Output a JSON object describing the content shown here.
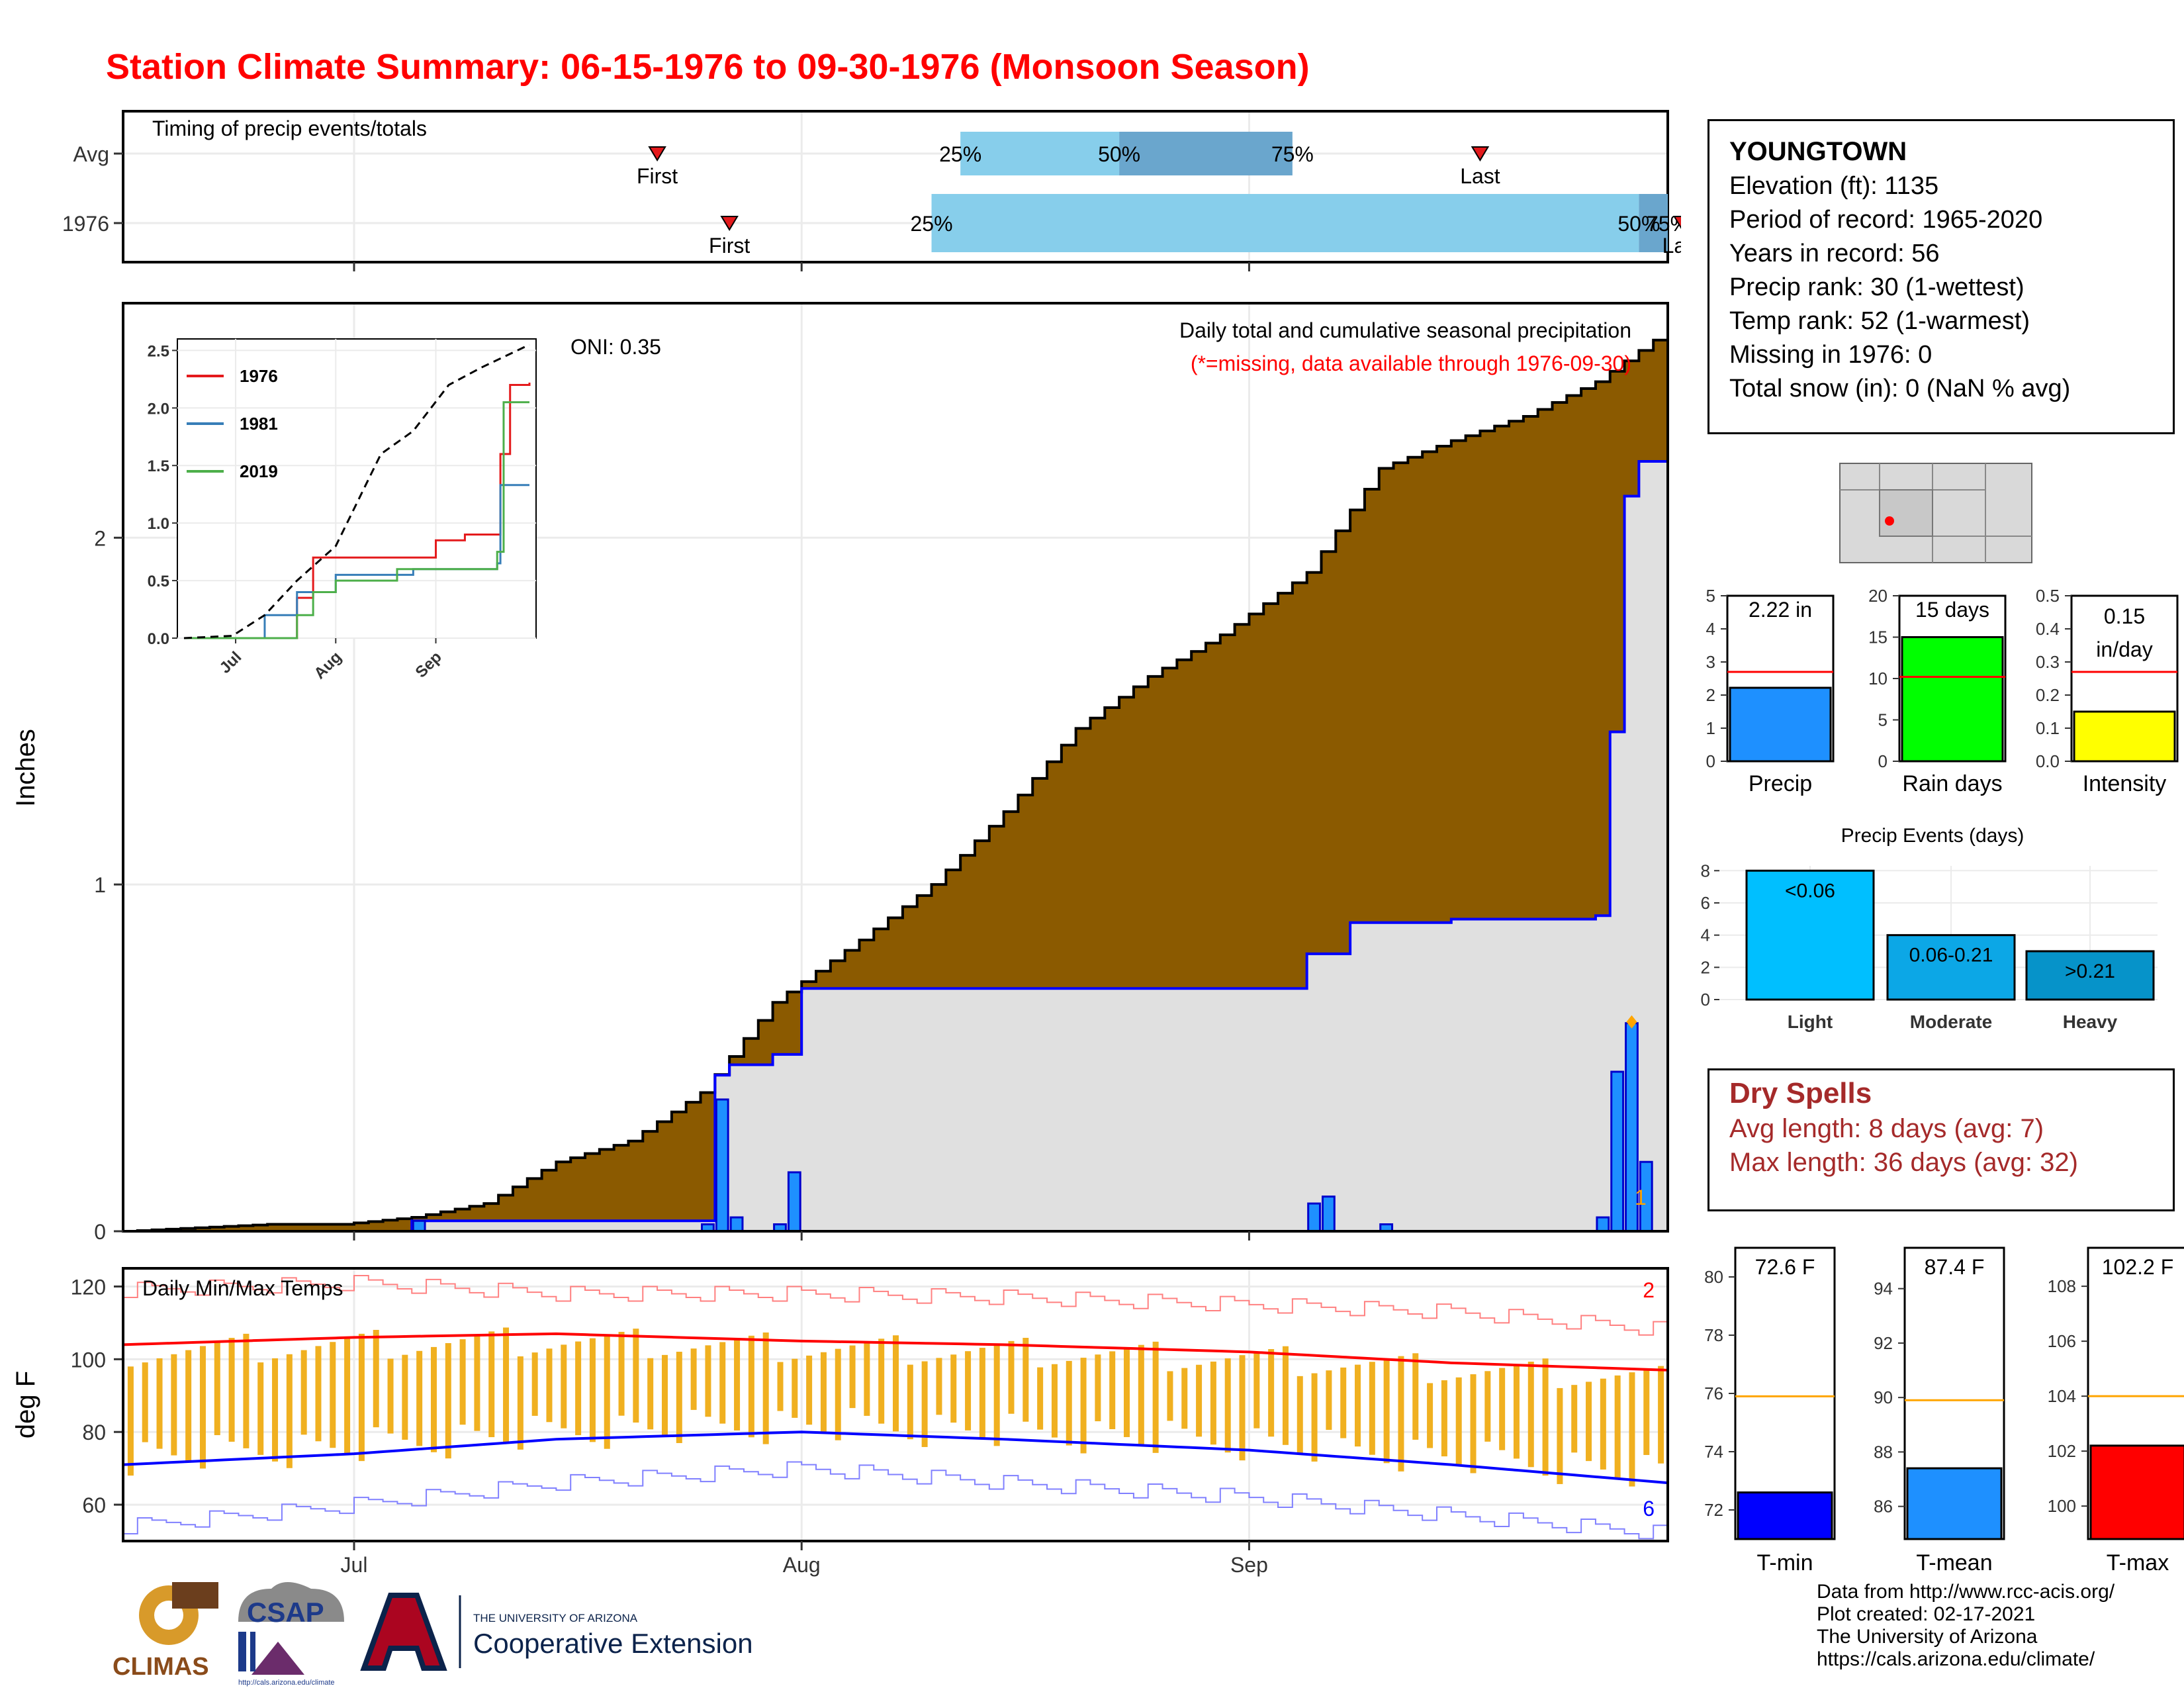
{
  "title": "Station Climate Summary: 06-15-1976 to 09-30-1976 (Monsoon Season)",
  "timing": {
    "label": "Timing of precip events/totals",
    "rows": [
      {
        "name": "Avg",
        "first_day": 37,
        "last_day": 94,
        "q25": 58,
        "q50": 69,
        "q75": 81,
        "pct_labels": [
          "25%",
          "50%",
          "75%"
        ]
      },
      {
        "name": "1976",
        "first_day": 42,
        "last_day": 108,
        "q25": 56,
        "q50": 105,
        "q75": 107,
        "pct_labels": [
          "25%",
          "50%",
          "75%"
        ]
      }
    ],
    "first_label": "First",
    "last_label": "Last"
  },
  "main_chart": {
    "ylabel": "Inches",
    "note1": "Daily total and cumulative seasonal precipitation",
    "note2": "(*=missing, data available through 1976-09-30)",
    "oni": "ONI: 0.35",
    "corner_count": "1",
    "y_ticks": [
      "0",
      "1",
      "2"
    ],
    "x_ticks": [
      "Jul",
      "Aug",
      "Sep"
    ]
  },
  "inset": {
    "y_ticks": [
      "0.0",
      "0.5",
      "1.0",
      "1.5",
      "2.0",
      "2.5"
    ],
    "x_ticks": [
      "Jul",
      "Aug",
      "Sep"
    ],
    "legend": [
      {
        "name": "1976",
        "color": "#e41a1c"
      },
      {
        "name": "1981",
        "color": "#377eb8"
      },
      {
        "name": "2019",
        "color": "#4daf4a"
      }
    ]
  },
  "temps": {
    "label": "Daily Min/Max Temps",
    "ylabel": "deg F",
    "y_ticks": [
      "60",
      "80",
      "100",
      "120"
    ],
    "x_ticks": [
      "Jul",
      "Aug",
      "Sep"
    ],
    "corner_top": "2",
    "corner_bottom": "6"
  },
  "station": {
    "name": "YOUNGTOWN",
    "lines": [
      "Elevation (ft): 1135",
      "Period of record: 1965-2020",
      "Years in record: 56",
      "Precip rank: 30 (1-wettest)",
      "Temp rank: 52 (1-warmest)",
      "Missing in 1976: 0",
      "Total snow (in): 0 (NaN % avg)"
    ]
  },
  "mini_bars": [
    {
      "label": "Precip",
      "value_text": "2.22 in",
      "value": 2.22,
      "avg": 2.7,
      "ymax": 5,
      "ticks": [
        "0",
        "1",
        "2",
        "3",
        "4",
        "5"
      ],
      "color": "#1e90ff"
    },
    {
      "label": "Rain days",
      "value_text": "15 days",
      "value": 15,
      "avg": 10.2,
      "ymax": 20,
      "ticks": [
        "0",
        "5",
        "10",
        "15",
        "20"
      ],
      "color": "#00ff00"
    },
    {
      "label": "Intensity",
      "value_text": "0.15 in/day",
      "value_text_a": "0.15",
      "value_text_b": "in/day",
      "value": 0.15,
      "avg": 0.27,
      "ymax": 0.5,
      "ticks": [
        "0.0",
        "0.1",
        "0.2",
        "0.3",
        "0.4",
        "0.5"
      ],
      "color": "#ffff00"
    }
  ],
  "events": {
    "title": "Precip Events (days)",
    "ticks": [
      "0",
      "2",
      "4",
      "6",
      "8"
    ],
    "bars": [
      {
        "cat": "Light",
        "label": "<0.06",
        "value": 8,
        "color": "#00bfff"
      },
      {
        "cat": "Moderate",
        "label": "0.06-0.21",
        "value": 4,
        "color": "#0ca7e6"
      },
      {
        "cat": "Heavy",
        "label": ">0.21",
        "value": 3,
        "color": "#0693c9"
      }
    ]
  },
  "dry_spells": {
    "title": "Dry Spells",
    "avg": "Avg length: 8 days (avg: 7)",
    "max": "Max length: 36 days (avg: 32)"
  },
  "temp_bars": [
    {
      "label": "T-min",
      "value_text": "72.6 F",
      "value": 72.6,
      "avg": 75.9,
      "ymin": 71,
      "ymax": 81,
      "ticks": [
        "72",
        "74",
        "76",
        "78",
        "80"
      ],
      "color": "#0000ff"
    },
    {
      "label": "T-mean",
      "value_text": "87.4 F",
      "value": 87.4,
      "avg": 89.9,
      "ymin": 84.8,
      "ymax": 95.5,
      "ticks": [
        "86",
        "88",
        "90",
        "92",
        "94"
      ],
      "color": "#1e90ff"
    },
    {
      "label": "T-max",
      "value_text": "102.2 F",
      "value": 102.2,
      "avg": 104,
      "ymin": 98.8,
      "ymax": 109.4,
      "ticks": [
        "100",
        "102",
        "104",
        "106",
        "108"
      ],
      "color": "#ff0000"
    }
  ],
  "credits": [
    "Data from http://www.rcc-acis.org/",
    "Plot created: 02-17-2021",
    "The University of Arizona",
    "https://cals.arizona.edu/climate/"
  ],
  "logos": {
    "climas": "CLIMAS",
    "csap": "CSAP",
    "csap_url": "http://cals.arizona.edu/climate",
    "ua_small": "THE UNIVERSITY OF ARIZONA",
    "ua_big": "Cooperative Extension"
  },
  "chart_data": [
    {
      "type": "area",
      "title": "Daily total and cumulative seasonal precipitation",
      "ylabel": "Inches",
      "x_range": [
        "1976-06-15",
        "1976-09-30"
      ],
      "ylim": [
        0,
        2.6
      ],
      "series": [
        {
          "name": "avg_cumulative",
          "x_dates": [
            "06-15",
            "06-20",
            "06-25",
            "06-30",
            "07-05",
            "07-10",
            "07-15",
            "07-20",
            "07-25",
            "07-30",
            "08-05",
            "08-10",
            "08-15",
            "08-20",
            "08-25",
            "08-30",
            "09-05",
            "09-10",
            "09-15",
            "09-20",
            "09-25",
            "09-30"
          ],
          "values": [
            0.0,
            0.01,
            0.02,
            0.02,
            0.04,
            0.08,
            0.2,
            0.26,
            0.4,
            0.66,
            0.84,
            1.0,
            1.21,
            1.45,
            1.6,
            1.72,
            1.9,
            2.2,
            2.28,
            2.35,
            2.45,
            2.6
          ]
        },
        {
          "name": "1976_cumulative",
          "x_dates": [
            "06-15",
            "07-01",
            "07-05",
            "07-25",
            "07-26",
            "07-27",
            "07-30",
            "08-01",
            "08-10",
            "08-15",
            "08-30",
            "09-05",
            "09-08",
            "09-10",
            "09-15",
            "09-20",
            "09-25",
            "09-26",
            "09-27",
            "09-28",
            "09-30"
          ],
          "values": [
            0.0,
            0.0,
            0.03,
            0.03,
            0.45,
            0.48,
            0.51,
            0.7,
            0.7,
            0.7,
            0.7,
            0.8,
            0.89,
            0.89,
            0.9,
            0.9,
            0.91,
            1.44,
            2.12,
            2.22,
            2.22
          ]
        },
        {
          "name": "1976_daily",
          "x_dates": [
            "07-05",
            "07-25",
            "07-26",
            "07-27",
            "07-30",
            "07-31",
            "09-05",
            "09-06",
            "09-10",
            "09-25",
            "09-26",
            "09-27",
            "09-28"
          ],
          "values": [
            0.03,
            0.02,
            0.38,
            0.04,
            0.02,
            0.17,
            0.08,
            0.1,
            0.02,
            0.04,
            0.46,
            0.6,
            0.2
          ]
        }
      ]
    },
    {
      "type": "line",
      "title": "",
      "ylim": [
        0,
        2.5
      ],
      "series": [
        {
          "name": "1976",
          "x_dates": [
            "06-15",
            "07-15",
            "07-20",
            "07-25",
            "08-20",
            "09-01",
            "09-10",
            "09-20",
            "09-21",
            "09-24",
            "09-30"
          ],
          "values": [
            0,
            0,
            0.35,
            0.7,
            0.7,
            0.85,
            0.9,
            0.9,
            1.6,
            2.2,
            2.22
          ]
        },
        {
          "name": "1981",
          "x_dates": [
            "06-15",
            "07-10",
            "07-20",
            "08-01",
            "08-25",
            "09-20",
            "09-21",
            "09-30"
          ],
          "values": [
            0,
            0.2,
            0.4,
            0.55,
            0.6,
            0.65,
            1.33,
            1.33
          ]
        },
        {
          "name": "2019",
          "x_dates": [
            "06-15",
            "07-20",
            "07-25",
            "08-01",
            "08-20",
            "09-20",
            "09-22",
            "09-30"
          ],
          "values": [
            0,
            0.2,
            0.4,
            0.5,
            0.6,
            0.75,
            2.05,
            2.05
          ]
        },
        {
          "name": "avg",
          "x_dates": [
            "06-15",
            "06-30",
            "07-10",
            "07-20",
            "08-01",
            "08-15",
            "08-25",
            "09-05",
            "09-15",
            "09-30"
          ],
          "values": [
            0,
            0.02,
            0.2,
            0.5,
            0.8,
            1.6,
            1.8,
            2.2,
            2.35,
            2.55
          ]
        }
      ]
    },
    {
      "type": "bar",
      "title": "Daily Min/Max Temps",
      "ylabel": "deg F",
      "ylim": [
        50,
        125
      ],
      "series": [
        {
          "name": "avg_max",
          "x_dates": [
            "06-15",
            "07-01",
            "07-15",
            "08-01",
            "08-15",
            "09-01",
            "09-15",
            "09-30"
          ],
          "values": [
            104,
            106,
            107,
            105,
            104,
            102,
            99,
            97
          ]
        },
        {
          "name": "avg_min",
          "x_dates": [
            "06-15",
            "07-01",
            "07-15",
            "08-01",
            "08-15",
            "09-01",
            "09-15",
            "09-30"
          ],
          "values": [
            71,
            74,
            78,
            80,
            78,
            75,
            71,
            66
          ]
        },
        {
          "name": "record_max",
          "x_dates": [
            "06-15",
            "07-01",
            "07-15",
            "08-01",
            "08-15",
            "09-01",
            "09-15",
            "09-30"
          ],
          "values": [
            119,
            121,
            118,
            118,
            117,
            115,
            113,
            108
          ]
        },
        {
          "name": "record_min",
          "x_dates": [
            "06-15",
            "07-01",
            "07-15",
            "08-01",
            "08-15",
            "09-01",
            "09-15",
            "09-30"
          ],
          "values": [
            54,
            60,
            66,
            70,
            66,
            62,
            57,
            52
          ]
        }
      ]
    }
  ]
}
